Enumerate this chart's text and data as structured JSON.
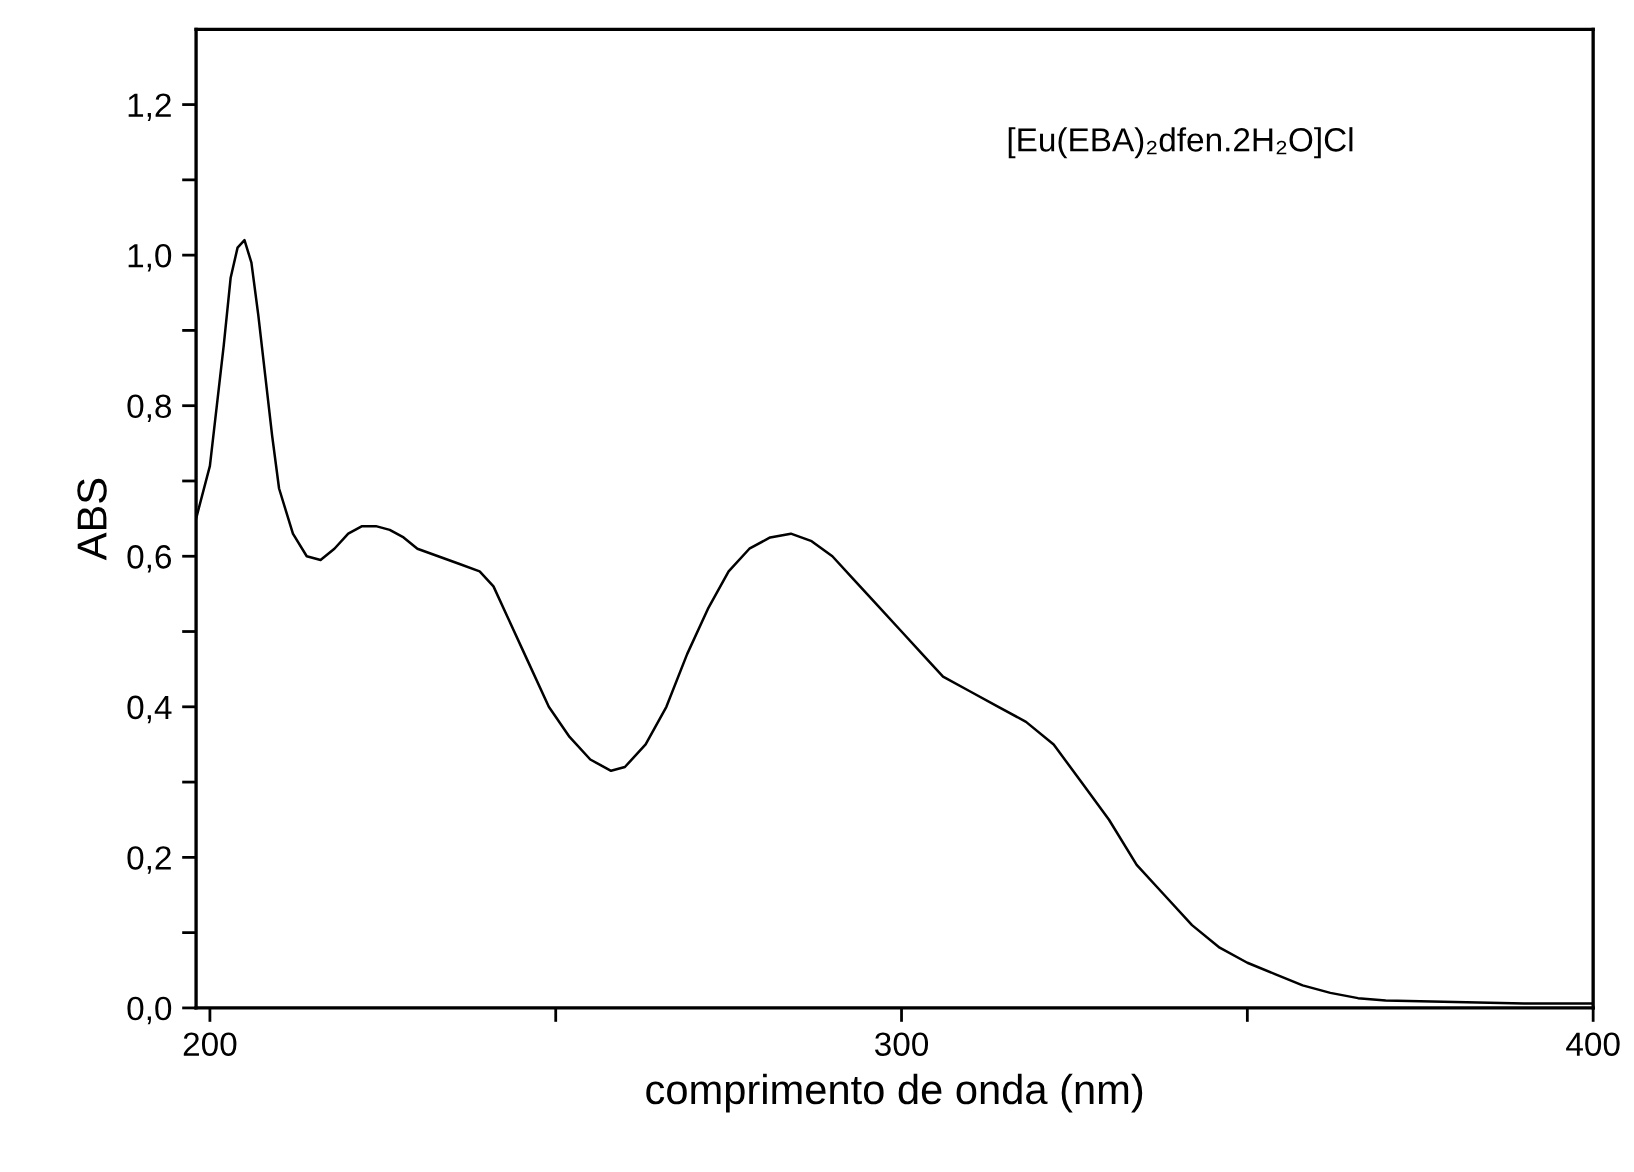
{
  "chart_data": {
    "type": "line",
    "xlabel": "comprimento de onda (nm)",
    "ylabel": "ABS",
    "annotations": [
      "[Eu(EBA)₂dfen.2H₂O]Cl"
    ],
    "x": [
      198,
      200,
      202,
      203,
      204,
      205,
      206,
      207,
      208,
      209,
      210,
      212,
      214,
      216,
      218,
      220,
      222,
      224,
      226,
      228,
      230,
      233,
      236,
      239,
      241,
      243,
      246,
      249,
      252,
      255,
      258,
      260,
      263,
      266,
      269,
      272,
      275,
      278,
      281,
      284,
      287,
      290,
      293,
      296,
      300,
      303,
      306,
      310,
      314,
      318,
      322,
      326,
      330,
      334,
      338,
      342,
      346,
      350,
      354,
      358,
      362,
      366,
      370,
      380,
      390,
      400
    ],
    "series": [
      {
        "color": "#000000",
        "values": [
          0.65,
          0.72,
          0.88,
          0.97,
          1.01,
          1.02,
          0.99,
          0.92,
          0.84,
          0.76,
          0.69,
          0.63,
          0.6,
          0.595,
          0.61,
          0.63,
          0.64,
          0.64,
          0.635,
          0.625,
          0.61,
          0.6,
          0.59,
          0.58,
          0.56,
          0.52,
          0.46,
          0.4,
          0.36,
          0.33,
          0.315,
          0.32,
          0.35,
          0.4,
          0.47,
          0.53,
          0.58,
          0.61,
          0.625,
          0.63,
          0.62,
          0.6,
          0.57,
          0.54,
          0.5,
          0.47,
          0.44,
          0.42,
          0.4,
          0.38,
          0.35,
          0.3,
          0.25,
          0.19,
          0.15,
          0.11,
          0.08,
          0.06,
          0.045,
          0.03,
          0.02,
          0.013,
          0.01,
          0.008,
          0.006,
          0.006
        ]
      }
    ],
    "xlim": [
      198,
      400
    ],
    "ylim": [
      0,
      1.3
    ],
    "xticks": [
      200,
      {
        "value": 250,
        "label": null
      },
      300,
      {
        "value": 350,
        "label": null
      },
      400
    ],
    "yticks": [
      {
        "value": 0,
        "label": "0,0"
      },
      {
        "value": 0.1,
        "label": null
      },
      {
        "value": 0.2,
        "label": "0,2"
      },
      {
        "value": 0.3,
        "label": null
      },
      {
        "value": 0.4,
        "label": "0,4"
      },
      {
        "value": 0.5,
        "label": null
      },
      {
        "value": 0.6,
        "label": "0,6"
      },
      {
        "value": 0.7,
        "label": null
      },
      {
        "value": 0.8,
        "label": "0,8"
      },
      {
        "value": 0.9,
        "label": null
      },
      {
        "value": 1.0,
        "label": "1,0"
      },
      {
        "value": 1.1,
        "label": null
      },
      {
        "value": 1.2,
        "label": "1,2"
      }
    ],
    "grid": false,
    "marker": "none",
    "line_style": "solid"
  }
}
